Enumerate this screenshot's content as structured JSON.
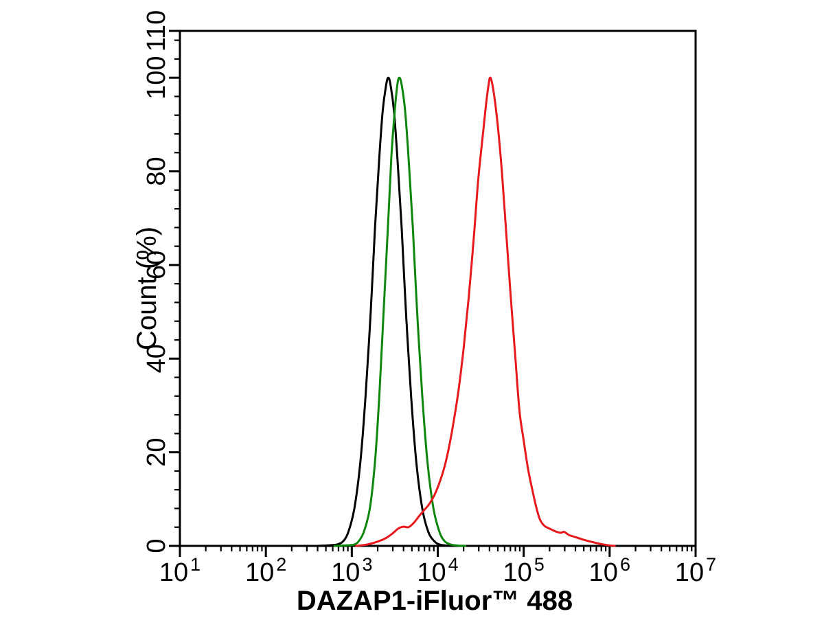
{
  "chart_data": {
    "type": "line",
    "subtype": "flow-cytometry-histogram",
    "title": "",
    "xlabel": "DAZAP1-iFluor™ 488",
    "ylabel": "Count (%)",
    "background_color": "#ffffff",
    "axis_color": "#000000",
    "grid": "off",
    "legend": "none",
    "x_axis": {
      "scale": "log10",
      "range_exponents": [
        1,
        7
      ],
      "tick_label_base": "10",
      "decade_exponents": [
        1,
        2,
        3,
        4,
        5,
        6,
        7
      ],
      "minor_multiples": [
        2,
        3,
        4,
        5,
        6,
        7,
        8,
        9
      ]
    },
    "y_axis": {
      "range": [
        0,
        110
      ],
      "major_ticks": [
        0,
        20,
        40,
        60,
        80,
        100,
        110
      ],
      "major_tick_labels": [
        "0",
        "20",
        "40",
        "60",
        "80",
        "100",
        "110"
      ],
      "minor_step": 4
    },
    "series": [
      {
        "name": "black-curve",
        "color": "#000000",
        "stroke_width": 3,
        "peak_x_log10": 3.425,
        "peak_percent": 100,
        "points": [
          [
            2.6,
            0
          ],
          [
            2.75,
            0.15
          ],
          [
            2.83,
            0.3
          ],
          [
            2.9,
            1
          ],
          [
            2.96,
            3
          ],
          [
            3.03,
            8
          ],
          [
            3.1,
            18
          ],
          [
            3.16,
            32
          ],
          [
            3.22,
            50
          ],
          [
            3.27,
            68
          ],
          [
            3.32,
            83
          ],
          [
            3.36,
            93
          ],
          [
            3.4,
            98.5
          ],
          [
            3.425,
            100
          ],
          [
            3.45,
            98.5
          ],
          [
            3.49,
            93
          ],
          [
            3.53,
            83
          ],
          [
            3.58,
            68
          ],
          [
            3.63,
            50
          ],
          [
            3.69,
            32
          ],
          [
            3.75,
            18
          ],
          [
            3.82,
            8
          ],
          [
            3.89,
            3
          ],
          [
            3.96,
            1
          ],
          [
            4.02,
            0.3
          ],
          [
            4.1,
            0.08
          ],
          [
            4.2,
            0
          ]
        ]
      },
      {
        "name": "green-curve",
        "color": "#0d860d",
        "stroke_width": 3,
        "peak_x_log10": 3.553,
        "peak_percent": 100,
        "points": [
          [
            2.8,
            0
          ],
          [
            2.95,
            0.12
          ],
          [
            3.03,
            0.3
          ],
          [
            3.08,
            1
          ],
          [
            3.14,
            3
          ],
          [
            3.21,
            8
          ],
          [
            3.27,
            18
          ],
          [
            3.32,
            32
          ],
          [
            3.37,
            50
          ],
          [
            3.42,
            68
          ],
          [
            3.46,
            83
          ],
          [
            3.5,
            93
          ],
          [
            3.53,
            98.5
          ],
          [
            3.553,
            100
          ],
          [
            3.58,
            98.5
          ],
          [
            3.62,
            93
          ],
          [
            3.66,
            83
          ],
          [
            3.71,
            68
          ],
          [
            3.76,
            50
          ],
          [
            3.82,
            32
          ],
          [
            3.88,
            18
          ],
          [
            3.95,
            8
          ],
          [
            4.02,
            3
          ],
          [
            4.08,
            1
          ],
          [
            4.15,
            0.3
          ],
          [
            4.23,
            0.08
          ],
          [
            4.32,
            0
          ]
        ]
      },
      {
        "name": "red-curve",
        "color": "#e8191c",
        "stroke_width": 3,
        "peak_x_log10": 4.613,
        "peak_percent": 100,
        "points": [
          [
            3.05,
            0
          ],
          [
            3.18,
            0.3
          ],
          [
            3.28,
            0.8
          ],
          [
            3.38,
            1.5
          ],
          [
            3.47,
            2.6
          ],
          [
            3.54,
            3.7
          ],
          [
            3.6,
            4.1
          ],
          [
            3.66,
            4.0
          ],
          [
            3.72,
            4.9
          ],
          [
            3.78,
            6.3
          ],
          [
            3.84,
            7.6
          ],
          [
            3.9,
            8.9
          ],
          [
            3.96,
            10.8
          ],
          [
            4.02,
            13.5
          ],
          [
            4.08,
            17
          ],
          [
            4.13,
            21
          ],
          [
            4.18,
            26
          ],
          [
            4.24,
            33
          ],
          [
            4.3,
            42
          ],
          [
            4.36,
            53
          ],
          [
            4.42,
            66
          ],
          [
            4.47,
            78
          ],
          [
            4.52,
            87
          ],
          [
            4.56,
            94
          ],
          [
            4.59,
            98.3
          ],
          [
            4.613,
            100
          ],
          [
            4.65,
            97
          ],
          [
            4.7,
            89.5
          ],
          [
            4.75,
            79
          ],
          [
            4.8,
            66
          ],
          [
            4.85,
            53
          ],
          [
            4.9,
            41
          ],
          [
            4.95,
            29
          ],
          [
            5.0,
            22.5
          ],
          [
            5.05,
            16.5
          ],
          [
            5.1,
            12
          ],
          [
            5.15,
            8
          ],
          [
            5.19,
            5.6
          ],
          [
            5.24,
            4.3
          ],
          [
            5.3,
            3.7
          ],
          [
            5.37,
            3.1
          ],
          [
            5.43,
            2.8
          ],
          [
            5.47,
            3.0
          ],
          [
            5.53,
            2.3
          ],
          [
            5.6,
            1.9
          ],
          [
            5.68,
            1.4
          ],
          [
            5.76,
            1.0
          ],
          [
            5.85,
            0.6
          ],
          [
            5.93,
            0.3
          ],
          [
            6.0,
            0.1
          ],
          [
            6.06,
            0
          ]
        ]
      }
    ]
  }
}
